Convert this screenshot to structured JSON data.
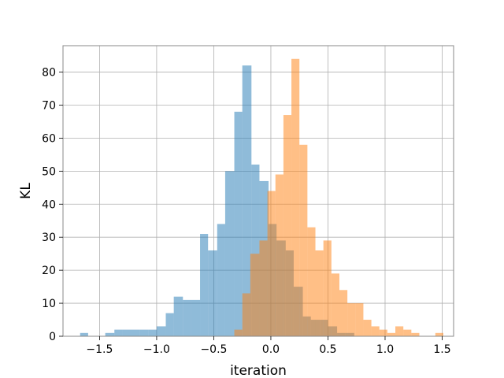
{
  "chart_data": {
    "type": "bar",
    "title": "",
    "xlabel": "iteration",
    "ylabel": "KL",
    "xlim": [
      -1.82,
      1.6
    ],
    "ylim": [
      0,
      88
    ],
    "xticks": [
      -1.5,
      -1.0,
      -0.5,
      0.0,
      0.5,
      1.0,
      1.5
    ],
    "xtick_labels": [
      "−1.5",
      "−1.0",
      "−0.5",
      "0.0",
      "0.5",
      "1.0",
      "1.5"
    ],
    "yticks": [
      0,
      10,
      20,
      30,
      40,
      50,
      60,
      70,
      80
    ],
    "ytick_labels": [
      "0",
      "10",
      "20",
      "30",
      "40",
      "50",
      "60",
      "70",
      "80"
    ],
    "grid": true,
    "legend": "none",
    "series": [
      {
        "color": "#1f77b4",
        "opacity": 0.5,
        "bins": [
          [
            -1.67,
            -1.6,
            1
          ],
          [
            -1.6,
            -1.52,
            0
          ],
          [
            -1.52,
            -1.45,
            0
          ],
          [
            -1.45,
            -1.37,
            1
          ],
          [
            -1.37,
            -1.3,
            2
          ],
          [
            -1.3,
            -1.22,
            2
          ],
          [
            -1.22,
            -1.15,
            2
          ],
          [
            -1.15,
            -1.07,
            2
          ],
          [
            -1.07,
            -1.0,
            2
          ],
          [
            -1.0,
            -0.92,
            3
          ],
          [
            -0.92,
            -0.85,
            7
          ],
          [
            -0.85,
            -0.77,
            12
          ],
          [
            -0.77,
            -0.7,
            11
          ],
          [
            -0.7,
            -0.62,
            11
          ],
          [
            -0.62,
            -0.55,
            31
          ],
          [
            -0.55,
            -0.47,
            26
          ],
          [
            -0.47,
            -0.4,
            34
          ],
          [
            -0.4,
            -0.32,
            50
          ],
          [
            -0.32,
            -0.25,
            68
          ],
          [
            -0.25,
            -0.17,
            82
          ],
          [
            -0.17,
            -0.1,
            52
          ],
          [
            -0.1,
            -0.02,
            47
          ],
          [
            -0.02,
            0.05,
            34
          ],
          [
            0.05,
            0.13,
            29
          ],
          [
            0.13,
            0.2,
            26
          ],
          [
            0.2,
            0.28,
            15
          ],
          [
            0.28,
            0.35,
            6
          ],
          [
            0.35,
            0.43,
            5
          ],
          [
            0.43,
            0.5,
            5
          ],
          [
            0.5,
            0.58,
            3
          ],
          [
            0.58,
            0.65,
            1
          ],
          [
            0.65,
            0.73,
            1
          ]
        ]
      },
      {
        "color": "#ff7f0e",
        "opacity": 0.5,
        "bins": [
          [
            -0.32,
            -0.25,
            2
          ],
          [
            -0.25,
            -0.18,
            13
          ],
          [
            -0.18,
            -0.1,
            25
          ],
          [
            -0.1,
            -0.03,
            29
          ],
          [
            -0.03,
            0.04,
            44
          ],
          [
            0.04,
            0.11,
            49
          ],
          [
            0.11,
            0.18,
            67
          ],
          [
            0.18,
            0.25,
            84
          ],
          [
            0.25,
            0.32,
            58
          ],
          [
            0.32,
            0.39,
            33
          ],
          [
            0.39,
            0.46,
            26
          ],
          [
            0.46,
            0.53,
            29
          ],
          [
            0.53,
            0.6,
            19
          ],
          [
            0.6,
            0.67,
            14
          ],
          [
            0.67,
            0.74,
            10
          ],
          [
            0.74,
            0.81,
            10
          ],
          [
            0.81,
            0.88,
            5
          ],
          [
            0.88,
            0.95,
            3
          ],
          [
            0.95,
            1.02,
            2
          ],
          [
            1.02,
            1.09,
            1
          ],
          [
            1.09,
            1.16,
            3
          ],
          [
            1.16,
            1.23,
            2
          ],
          [
            1.23,
            1.3,
            1
          ],
          [
            1.3,
            1.37,
            0
          ],
          [
            1.37,
            1.44,
            0
          ],
          [
            1.44,
            1.51,
            1
          ]
        ]
      }
    ]
  }
}
